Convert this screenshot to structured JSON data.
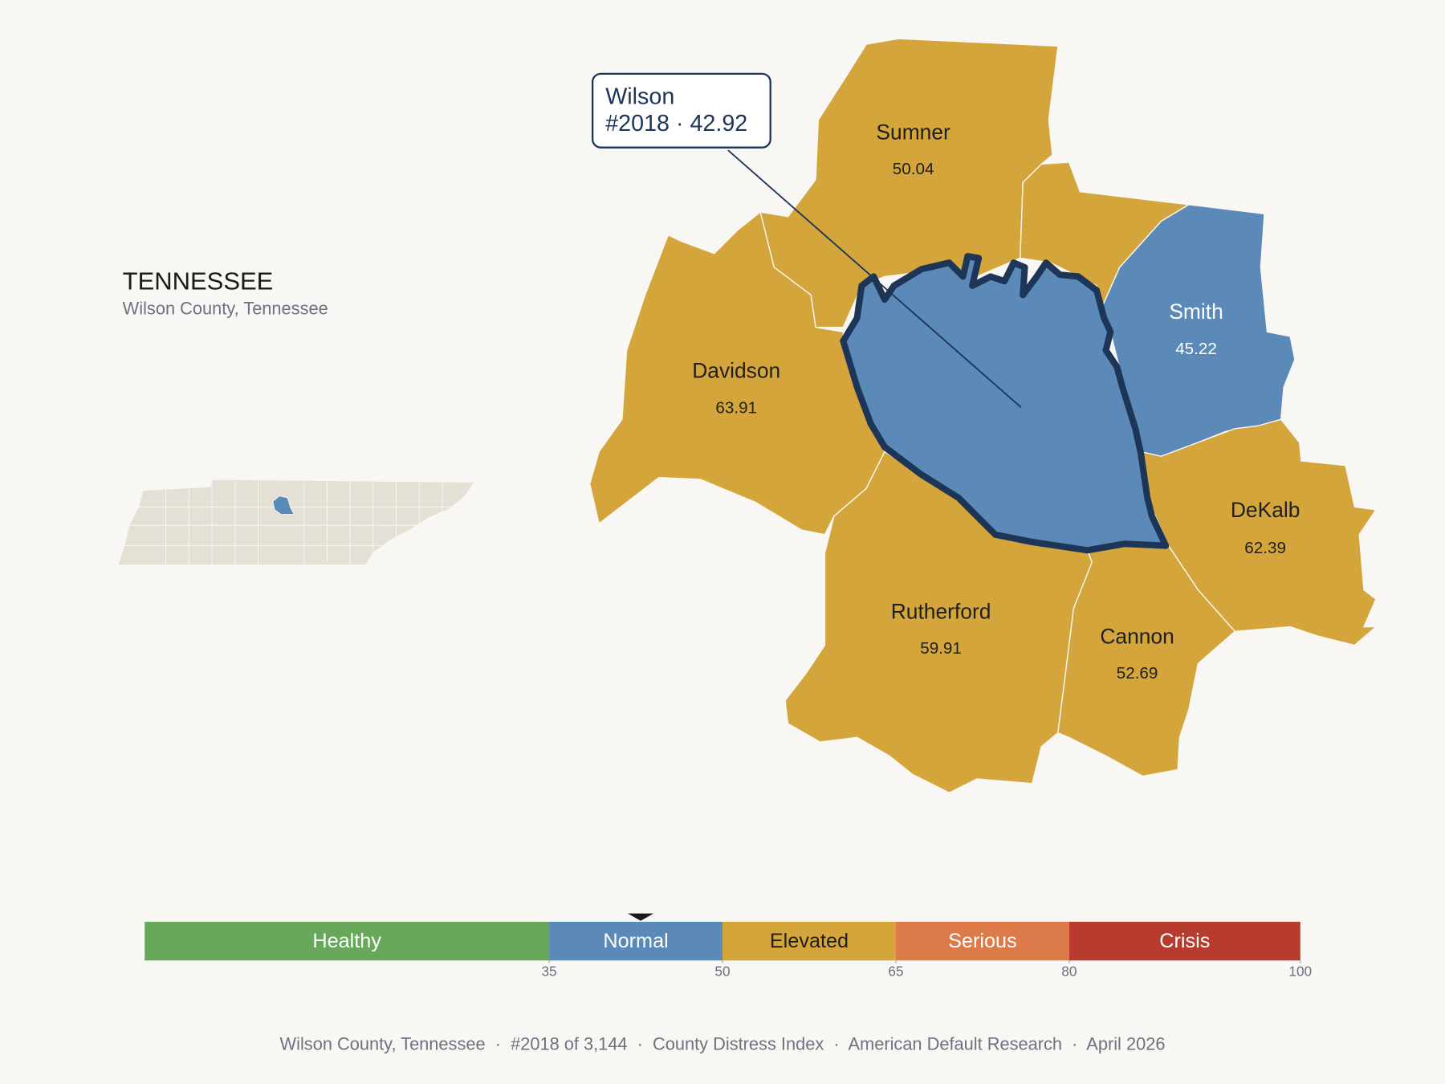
{
  "header": {
    "title": "TENNESSEE",
    "subtitle": "Wilson County, Tennessee"
  },
  "map": {
    "counties": [
      {
        "name": "Sumner",
        "value": 50.04,
        "color": "#d4a53b"
      },
      {
        "name": "Davidson",
        "value": 63.91,
        "color": "#d4a53b"
      },
      {
        "name": "Smith",
        "value": 45.22,
        "color": "#5b89b8"
      },
      {
        "name": "DeKalb",
        "value": 62.39,
        "color": "#d4a53b"
      },
      {
        "name": "Rutherford",
        "value": 59.91,
        "color": "#d4a53b"
      },
      {
        "name": "Cannon",
        "value": 52.69,
        "color": "#d4a53b"
      }
    ],
    "selected": {
      "name": "Wilson",
      "detail": "#2018 · 42.92",
      "value": 42.92,
      "color": "#5b89b8",
      "outline": "#1d3557"
    }
  },
  "scale": {
    "xlim": [
      0,
      100
    ],
    "xticks": [
      35,
      50,
      65,
      80,
      100
    ],
    "bands": [
      {
        "label": "Healthy",
        "color": "#67a85a",
        "text_color": "#ffffff"
      },
      {
        "label": "Normal",
        "color": "#5b89b8",
        "text_color": "#ffffff"
      },
      {
        "label": "Elevated",
        "color": "#d4a53b",
        "text_color": "#1f1f1f"
      },
      {
        "label": "Serious",
        "color": "#dc7a4a",
        "text_color": "#ffffff"
      },
      {
        "label": "Crisis",
        "color": "#b83c2d",
        "text_color": "#ffffff"
      }
    ]
  },
  "footer": "Wilson County, Tennessee  ·  #2018 of 3,144  ·  County Distress Index  ·  American Default Research  ·  April 2026"
}
